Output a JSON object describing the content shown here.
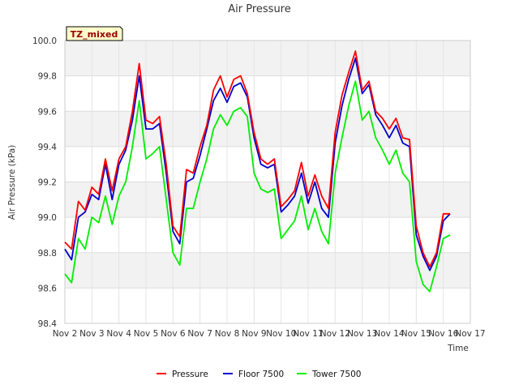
{
  "chart_data": {
    "type": "line",
    "title": "Air Pressure",
    "xlabel": "Time",
    "ylabel": "Air Pressure (kPa)",
    "badge": "TZ_mixed",
    "x_tick_labels": [
      "Nov 2",
      "Nov 3",
      "Nov 4",
      "Nov 5",
      "Nov 6",
      "Nov 7",
      "Nov 8",
      "Nov 9",
      "Nov 10",
      "Nov 11",
      "Nov 12",
      "Nov 13",
      "Nov 14",
      "Nov 15",
      "Nov 16",
      "Nov 17"
    ],
    "xlim": [
      2,
      17
    ],
    "ylim": [
      98.4,
      100.0
    ],
    "y_ticks": [
      98.4,
      98.6,
      98.8,
      99.0,
      99.2,
      99.4,
      99.6,
      99.8,
      100.0
    ],
    "y_tick_labels": [
      "98.4",
      "98.6",
      "98.8",
      "99.0",
      "99.2",
      "99.4",
      "99.6",
      "99.8",
      "100.0"
    ],
    "grid": true,
    "legend_position": "bottom-center",
    "x": [
      2.0,
      2.25,
      2.5,
      2.75,
      3.0,
      3.25,
      3.5,
      3.75,
      4.0,
      4.25,
      4.5,
      4.75,
      5.0,
      5.25,
      5.5,
      5.75,
      6.0,
      6.25,
      6.5,
      6.75,
      7.0,
      7.25,
      7.5,
      7.75,
      8.0,
      8.25,
      8.5,
      8.75,
      9.0,
      9.25,
      9.5,
      9.75,
      10.0,
      10.25,
      10.5,
      10.75,
      11.0,
      11.25,
      11.5,
      11.75,
      12.0,
      12.25,
      12.5,
      12.75,
      13.0,
      13.25,
      13.5,
      13.75,
      14.0,
      14.25,
      14.5,
      14.75,
      15.0,
      15.25,
      15.5,
      15.75,
      16.0,
      16.25
    ],
    "series": [
      {
        "name": "Pressure",
        "color": "#ff0000",
        "values": [
          98.86,
          98.82,
          99.09,
          99.04,
          99.17,
          99.13,
          99.33,
          99.15,
          99.33,
          99.4,
          99.6,
          99.87,
          99.55,
          99.53,
          99.57,
          99.3,
          98.95,
          98.89,
          99.27,
          99.25,
          99.4,
          99.52,
          99.72,
          99.8,
          99.68,
          99.78,
          99.8,
          99.7,
          99.48,
          99.33,
          99.3,
          99.33,
          99.06,
          99.1,
          99.15,
          99.31,
          99.12,
          99.24,
          99.12,
          99.05,
          99.48,
          99.69,
          99.82,
          99.94,
          99.72,
          99.77,
          99.6,
          99.56,
          99.5,
          99.56,
          99.45,
          99.44,
          98.95,
          98.8,
          98.72,
          98.8,
          99.02,
          99.02
        ]
      },
      {
        "name": "Floor 7500",
        "color": "#0000cc",
        "values": [
          98.82,
          98.76,
          99.0,
          99.03,
          99.13,
          99.1,
          99.3,
          99.1,
          99.3,
          99.38,
          99.55,
          99.8,
          99.5,
          99.5,
          99.53,
          99.25,
          98.92,
          98.85,
          99.2,
          99.22,
          99.35,
          99.5,
          99.66,
          99.73,
          99.65,
          99.74,
          99.76,
          99.68,
          99.45,
          99.3,
          99.28,
          99.3,
          99.03,
          99.07,
          99.12,
          99.25,
          99.08,
          99.2,
          99.05,
          99.0,
          99.42,
          99.63,
          99.78,
          99.9,
          99.7,
          99.75,
          99.58,
          99.52,
          99.45,
          99.52,
          99.42,
          99.4,
          98.9,
          98.78,
          98.7,
          98.78,
          98.98,
          99.02
        ]
      },
      {
        "name": "Tower 7500",
        "color": "#00ee00",
        "values": [
          98.68,
          98.63,
          98.88,
          98.82,
          99.0,
          98.97,
          99.12,
          98.96,
          99.12,
          99.2,
          99.4,
          99.66,
          99.33,
          99.36,
          99.4,
          99.1,
          98.8,
          98.73,
          99.05,
          99.05,
          99.2,
          99.33,
          99.5,
          99.58,
          99.52,
          99.6,
          99.62,
          99.57,
          99.25,
          99.16,
          99.14,
          99.16,
          98.88,
          98.93,
          98.98,
          99.12,
          98.93,
          99.05,
          98.92,
          98.85,
          99.25,
          99.45,
          99.63,
          99.77,
          99.55,
          99.6,
          99.45,
          99.38,
          99.3,
          99.38,
          99.25,
          99.2,
          98.75,
          98.62,
          98.58,
          98.72,
          98.88,
          98.9
        ]
      }
    ]
  }
}
